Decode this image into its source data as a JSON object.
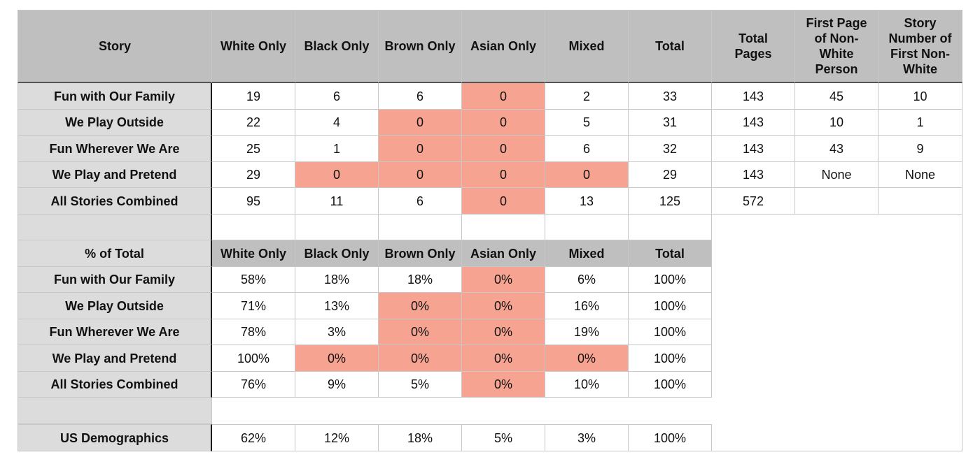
{
  "top_table": {
    "headers": [
      "Story",
      "White Only",
      "Black Only",
      "Brown Only",
      "Asian Only",
      "Mixed",
      "Total",
      "Total\nPages",
      "First Page\nof Non-\nWhite\nPerson",
      "Story\nNumber of\nFirst Non-\nWhite"
    ],
    "rows": [
      {
        "label": "Fun with Our Family",
        "cells": [
          "19",
          "6",
          "6",
          "0",
          "2",
          "33",
          "143",
          "45",
          "10"
        ],
        "highlight": [
          false,
          false,
          false,
          true,
          false,
          false,
          false,
          false,
          false
        ]
      },
      {
        "label": "We Play Outside",
        "cells": [
          "22",
          "4",
          "0",
          "0",
          "5",
          "31",
          "143",
          "10",
          "1"
        ],
        "highlight": [
          false,
          false,
          true,
          true,
          false,
          false,
          false,
          false,
          false
        ]
      },
      {
        "label": "Fun Wherever We Are",
        "cells": [
          "25",
          "1",
          "0",
          "0",
          "6",
          "32",
          "143",
          "43",
          "9"
        ],
        "highlight": [
          false,
          false,
          true,
          true,
          false,
          false,
          false,
          false,
          false
        ]
      },
      {
        "label": "We Play and Pretend",
        "cells": [
          "29",
          "0",
          "0",
          "0",
          "0",
          "29",
          "143",
          "None",
          "None"
        ],
        "highlight": [
          false,
          true,
          true,
          true,
          true,
          false,
          false,
          false,
          false
        ]
      },
      {
        "label": "All Stories Combined",
        "cells": [
          "95",
          "11",
          "6",
          "0",
          "13",
          "125",
          "572",
          "",
          ""
        ],
        "highlight": [
          false,
          false,
          false,
          true,
          false,
          false,
          false,
          false,
          false
        ]
      }
    ]
  },
  "percent_table": {
    "headers": [
      "% of Total",
      "White Only",
      "Black Only",
      "Brown Only",
      "Asian Only",
      "Mixed",
      "Total"
    ],
    "rows": [
      {
        "label": "Fun with Our Family",
        "cells": [
          "58%",
          "18%",
          "18%",
          "0%",
          "6%",
          "100%"
        ],
        "highlight": [
          false,
          false,
          false,
          true,
          false,
          false
        ]
      },
      {
        "label": "We Play Outside",
        "cells": [
          "71%",
          "13%",
          "0%",
          "0%",
          "16%",
          "100%"
        ],
        "highlight": [
          false,
          false,
          true,
          true,
          false,
          false
        ]
      },
      {
        "label": "Fun Wherever We Are",
        "cells": [
          "78%",
          "3%",
          "0%",
          "0%",
          "19%",
          "100%"
        ],
        "highlight": [
          false,
          false,
          true,
          true,
          false,
          false
        ]
      },
      {
        "label": "We Play and Pretend",
        "cells": [
          "100%",
          "0%",
          "0%",
          "0%",
          "0%",
          "100%"
        ],
        "highlight": [
          false,
          true,
          true,
          true,
          true,
          false
        ]
      },
      {
        "label": "All Stories Combined",
        "cells": [
          "76%",
          "9%",
          "5%",
          "0%",
          "10%",
          "100%"
        ],
        "highlight": [
          false,
          false,
          false,
          true,
          false,
          false
        ]
      }
    ]
  },
  "demographics": {
    "label": "US Demographics",
    "cells": [
      "62%",
      "12%",
      "18%",
      "5%",
      "3%",
      "100%"
    ]
  },
  "colors": {
    "header_bg": "#bfbfbf",
    "label_bg": "#dcdcdc",
    "zero_highlight": "#f6a491"
  }
}
